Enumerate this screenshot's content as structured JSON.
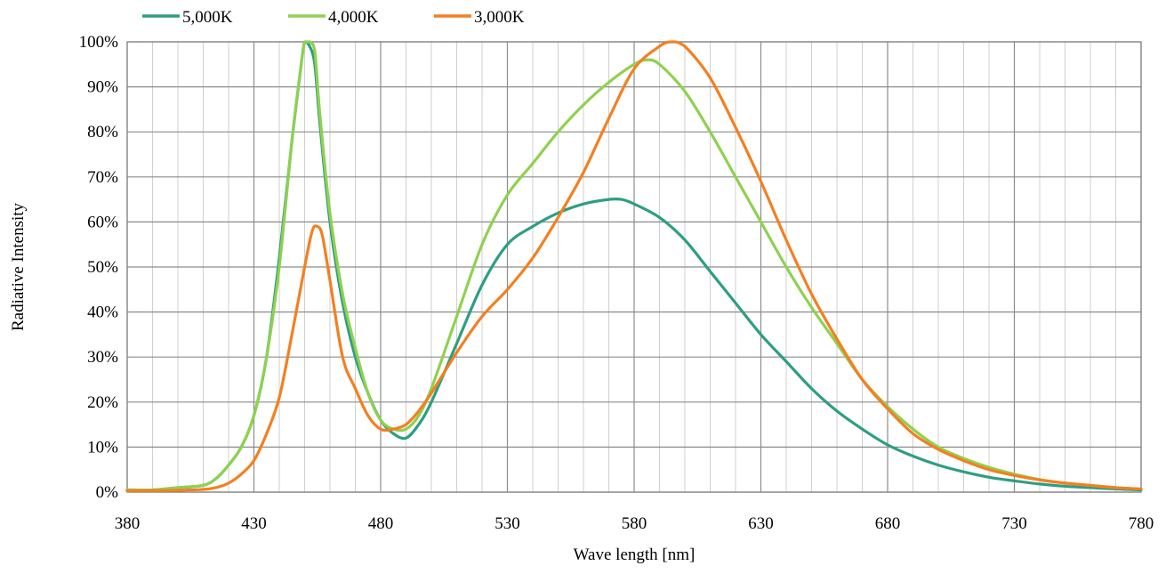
{
  "chart_data": {
    "type": "line",
    "title": "",
    "xlabel": "Wave length [nm]",
    "ylabel": "Radiative Intensity",
    "xlim": [
      380,
      780
    ],
    "ylim": [
      0,
      100
    ],
    "x_ticks": [
      380,
      430,
      480,
      530,
      580,
      630,
      680,
      730,
      780
    ],
    "x_tick_labels": [
      "380",
      "430",
      "480",
      "530",
      "580",
      "630",
      "680",
      "730",
      "780"
    ],
    "y_ticks": [
      0,
      10,
      20,
      30,
      40,
      50,
      60,
      70,
      80,
      90,
      100
    ],
    "y_tick_labels": [
      "0%",
      "10%",
      "20%",
      "30%",
      "40%",
      "50%",
      "60%",
      "70%",
      "80%",
      "90%",
      "100%"
    ],
    "x_minor_step": 10,
    "grid": true,
    "legend_position": "top-left",
    "series": [
      {
        "name": "5,000K",
        "color": "#2e9e82",
        "x": [
          380,
          390,
          400,
          410,
          415,
          420,
          425,
          430,
          435,
          440,
          445,
          448,
          450,
          452,
          454,
          456,
          460,
          465,
          470,
          475,
          480,
          485,
          490,
          495,
          500,
          510,
          520,
          530,
          540,
          550,
          560,
          570,
          575,
          580,
          590,
          600,
          610,
          620,
          630,
          640,
          650,
          660,
          670,
          680,
          690,
          700,
          710,
          720,
          730,
          740,
          750,
          760,
          770,
          780
        ],
        "y": [
          0.5,
          0.5,
          1,
          1.5,
          3,
          6,
          10,
          17,
          30,
          52,
          78,
          92,
          100,
          99,
          95,
          82,
          60,
          42,
          30,
          22,
          16,
          13,
          12,
          15,
          20,
          33,
          46,
          55,
          59,
          62,
          64,
          65,
          65,
          64,
          61,
          56,
          49,
          42,
          35,
          29,
          23,
          18,
          14,
          10.5,
          8,
          6,
          4.5,
          3.3,
          2.5,
          1.8,
          1.3,
          1,
          0.7,
          0.5
        ]
      },
      {
        "name": "4,000K",
        "color": "#8fd14f",
        "x": [
          380,
          390,
          400,
          410,
          415,
          420,
          425,
          430,
          435,
          440,
          445,
          448,
          450,
          452,
          454,
          456,
          460,
          465,
          470,
          475,
          480,
          485,
          490,
          495,
          500,
          510,
          520,
          530,
          540,
          550,
          560,
          570,
          580,
          585,
          590,
          600,
          610,
          620,
          630,
          640,
          650,
          660,
          670,
          680,
          690,
          700,
          710,
          720,
          730,
          740,
          750,
          760,
          770,
          780
        ],
        "y": [
          0.5,
          0.5,
          1,
          1.5,
          3,
          6,
          10,
          17,
          30,
          50,
          78,
          92,
          100,
          100,
          98,
          84,
          62,
          44,
          32,
          22,
          16,
          14,
          14,
          17,
          23,
          39,
          55,
          66,
          73,
          80,
          86,
          91,
          95,
          96,
          95,
          89,
          80,
          70,
          60,
          50,
          41,
          33,
          25,
          19,
          14,
          10,
          7.5,
          5.5,
          4,
          2.8,
          2,
          1.5,
          1,
          0.7
        ]
      },
      {
        "name": "3,000K",
        "color": "#f47f20",
        "x": [
          380,
          390,
          400,
          410,
          415,
          420,
          425,
          430,
          435,
          440,
          445,
          450,
          453,
          455,
          457,
          460,
          465,
          470,
          475,
          480,
          485,
          490,
          495,
          500,
          510,
          520,
          530,
          540,
          550,
          560,
          570,
          580,
          590,
          595,
          600,
          610,
          620,
          630,
          640,
          650,
          660,
          670,
          680,
          690,
          700,
          710,
          720,
          730,
          740,
          750,
          760,
          770,
          780
        ],
        "y": [
          0.3,
          0.3,
          0.4,
          0.6,
          1,
          2,
          4,
          7,
          13,
          21,
          35,
          50,
          58,
          59,
          57,
          47,
          30,
          23,
          17,
          14,
          14,
          15,
          18,
          22,
          31,
          39,
          45,
          52,
          61,
          71,
          83,
          94,
          99,
          100,
          99,
          92,
          81,
          69,
          56,
          44,
          34,
          25,
          18.5,
          13,
          9.5,
          7,
          5,
          3.7,
          2.7,
          2,
          1.5,
          1,
          0.7
        ]
      }
    ]
  }
}
